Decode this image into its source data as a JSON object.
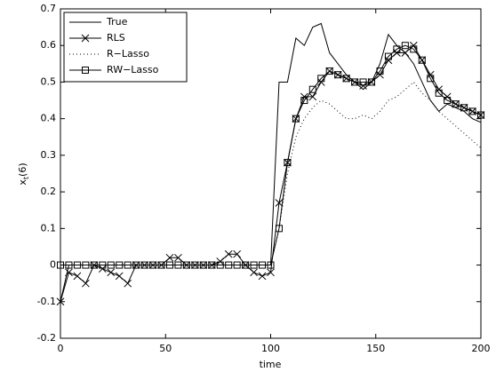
{
  "chart_data": {
    "type": "line",
    "x": [
      0,
      4,
      8,
      12,
      16,
      20,
      24,
      28,
      32,
      36,
      40,
      44,
      48,
      52,
      56,
      60,
      64,
      68,
      72,
      76,
      80,
      84,
      88,
      92,
      96,
      100,
      104,
      108,
      112,
      116,
      120,
      124,
      128,
      132,
      136,
      140,
      144,
      148,
      152,
      156,
      160,
      164,
      168,
      172,
      176,
      180,
      184,
      188,
      192,
      196,
      200
    ],
    "series": [
      {
        "name": "True",
        "color": "#000000",
        "style": "solid",
        "marker": null,
        "values": [
          -0.1,
          0,
          0,
          0,
          0,
          0,
          0,
          0,
          0,
          0,
          0,
          0,
          0,
          0,
          0,
          0,
          0,
          0,
          0,
          0,
          0,
          0,
          0,
          0,
          0,
          0,
          0.5,
          0.5,
          0.62,
          0.6,
          0.65,
          0.66,
          0.58,
          0.55,
          0.52,
          0.5,
          0.48,
          0.5,
          0.55,
          0.63,
          0.6,
          0.58,
          0.55,
          0.5,
          0.45,
          0.42,
          0.44,
          0.43,
          0.42,
          0.4,
          0.39
        ]
      },
      {
        "name": "RLS",
        "color": "#000000",
        "style": "solid",
        "marker": "x",
        "values": [
          -0.1,
          -0.02,
          -0.03,
          -0.05,
          0,
          -0.01,
          -0.02,
          -0.03,
          -0.05,
          0,
          0,
          0,
          0,
          0.02,
          0.02,
          0,
          0,
          0,
          0,
          0.01,
          0.03,
          0.03,
          0,
          -0.02,
          -0.03,
          -0.02,
          0.17,
          0.28,
          0.4,
          0.46,
          0.46,
          0.5,
          0.53,
          0.52,
          0.51,
          0.5,
          0.49,
          0.5,
          0.52,
          0.56,
          0.58,
          0.58,
          0.6,
          0.56,
          0.52,
          0.48,
          0.46,
          0.44,
          0.43,
          0.42,
          0.41
        ]
      },
      {
        "name": "R−Lasso",
        "color": "#000000",
        "style": "dotted",
        "marker": null,
        "values": [
          0,
          0,
          0,
          0,
          0,
          0,
          0,
          0,
          0,
          0,
          0,
          0,
          0,
          0,
          0,
          0,
          0,
          0,
          0,
          0,
          0,
          0,
          0,
          0,
          0,
          0,
          0.1,
          0.25,
          0.35,
          0.4,
          0.43,
          0.45,
          0.44,
          0.42,
          0.4,
          0.4,
          0.41,
          0.4,
          0.42,
          0.45,
          0.46,
          0.48,
          0.5,
          0.47,
          0.45,
          0.42,
          0.4,
          0.38,
          0.36,
          0.34,
          0.32
        ]
      },
      {
        "name": "RW−Lasso",
        "color": "#000000",
        "style": "solid",
        "marker": "square",
        "values": [
          0,
          0,
          0,
          0,
          0,
          0,
          0,
          0,
          0,
          0,
          0,
          0,
          0,
          0,
          0,
          0,
          0,
          0,
          0,
          0,
          0,
          0,
          0,
          0,
          0,
          0,
          0.1,
          0.28,
          0.4,
          0.45,
          0.48,
          0.51,
          0.53,
          0.52,
          0.51,
          0.5,
          0.5,
          0.5,
          0.53,
          0.57,
          0.59,
          0.6,
          0.59,
          0.56,
          0.51,
          0.47,
          0.45,
          0.44,
          0.43,
          0.42,
          0.41
        ]
      }
    ],
    "xlim": [
      0,
      200
    ],
    "xticks": [
      0,
      50,
      100,
      150,
      200
    ],
    "ylim": [
      -0.2,
      0.7
    ],
    "yticks": [
      -0.2,
      -0.1,
      0,
      0.1,
      0.2,
      0.3,
      0.4,
      0.5,
      0.6,
      0.7
    ],
    "xlabel": "time",
    "ylabel": {
      "base": "x",
      "sub": "t",
      "rest": "(6)"
    },
    "legend": "top-left",
    "grid": false
  }
}
